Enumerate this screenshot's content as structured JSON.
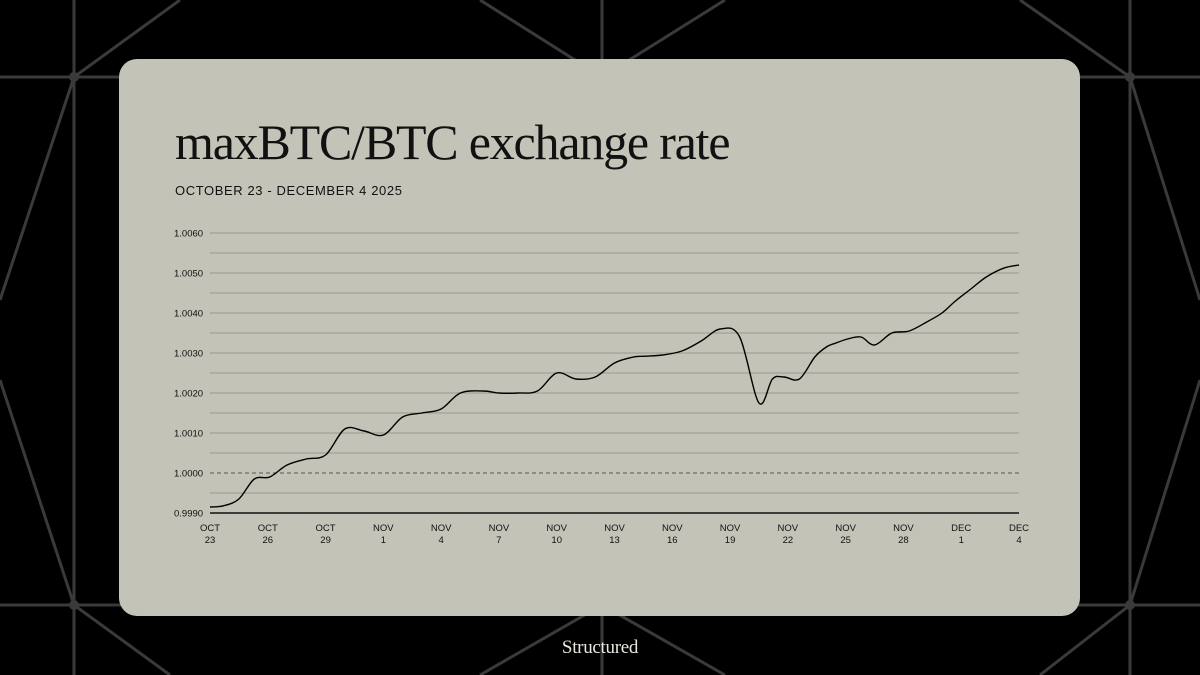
{
  "brand": {
    "name": "Structured"
  },
  "colors": {
    "background": "#000000",
    "card": "#c4c3b7",
    "line": "#000000",
    "grid": "#8d8c82",
    "pattern": "#3a3a3a"
  },
  "chart_data": {
    "type": "line",
    "title": "maxBTC/BTC exchange rate",
    "subtitle": "OCTOBER 23 - DECEMBER 4 2025",
    "xlabel": "",
    "ylabel": "",
    "ylim": [
      0.999,
      1.006
    ],
    "grid": true,
    "reference_line": {
      "value": 1.0,
      "style": "dashed"
    },
    "y_ticks": [
      "1.0060",
      "1.0050",
      "1.0040",
      "1.0030",
      "1.0020",
      "1.0010",
      "1.0000",
      "0.9990"
    ],
    "x_ticks": [
      {
        "top": "OCT",
        "bottom": "23"
      },
      {
        "top": "OCT",
        "bottom": "26"
      },
      {
        "top": "OCT",
        "bottom": "29"
      },
      {
        "top": "NOV",
        "bottom": "1"
      },
      {
        "top": "NOV",
        "bottom": "4"
      },
      {
        "top": "NOV",
        "bottom": "7"
      },
      {
        "top": "NOV",
        "bottom": "10"
      },
      {
        "top": "NOV",
        "bottom": "13"
      },
      {
        "top": "NOV",
        "bottom": "16"
      },
      {
        "top": "NOV",
        "bottom": "19"
      },
      {
        "top": "NOV",
        "bottom": "22"
      },
      {
        "top": "NOV",
        "bottom": "25"
      },
      {
        "top": "NOV",
        "bottom": "28"
      },
      {
        "top": "DEC",
        "bottom": "1"
      },
      {
        "top": "DEC",
        "bottom": "4"
      }
    ],
    "x_range_days": [
      0,
      42
    ],
    "series": [
      {
        "name": "maxBTC/BTC",
        "x": [
          0,
          0.7,
          1.5,
          2.3,
          3.1,
          4.0,
          5.0,
          6.0,
          7.0,
          8.0,
          9.0,
          10.0,
          11.0,
          12.0,
          13.0,
          14.2,
          15.0,
          16.0,
          17.0,
          18.0,
          19.0,
          20.0,
          21.0,
          22.0,
          22.6,
          23.5,
          24.5,
          25.5,
          26.5,
          27.5,
          28.5,
          29.2,
          29.8,
          30.6,
          31.4,
          32.0,
          32.5,
          33.1,
          33.8,
          34.5,
          35.4,
          36.3,
          37.3,
          38.0,
          38.7,
          39.5,
          40.3,
          41.2,
          42.0
        ],
        "values": [
          0.99915,
          0.99918,
          0.99935,
          0.99985,
          0.9999,
          1.0002,
          1.00035,
          1.00045,
          1.0011,
          1.00105,
          1.00095,
          1.0014,
          1.0015,
          1.0016,
          1.002,
          1.00205,
          1.002,
          1.002,
          1.00205,
          1.0025,
          1.00235,
          1.0024,
          1.00275,
          1.0029,
          1.00292,
          1.00295,
          1.00305,
          1.0033,
          1.0036,
          1.0034,
          1.00175,
          1.00235,
          1.0024,
          1.00235,
          1.0029,
          1.00315,
          1.00325,
          1.00335,
          1.0034,
          1.0032,
          1.0035,
          1.00355,
          1.0038,
          1.004,
          1.0043,
          1.0046,
          1.0049,
          1.00512,
          1.0052
        ]
      }
    ]
  }
}
